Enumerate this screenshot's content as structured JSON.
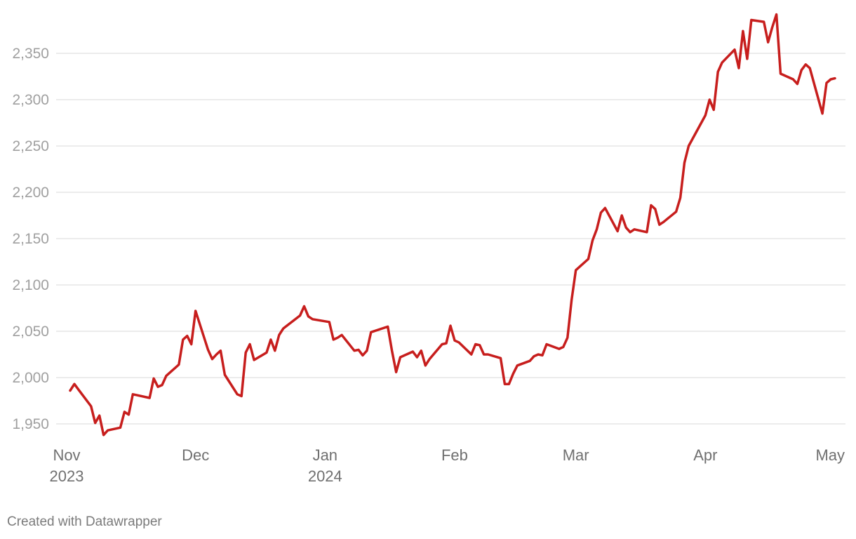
{
  "chart_data": {
    "type": "line",
    "title": "",
    "xlabel": "",
    "ylabel": "",
    "ylim": [
      1930,
      2395
    ],
    "y_ticks": [
      1950,
      2000,
      2050,
      2100,
      2150,
      2200,
      2250,
      2300,
      2350
    ],
    "y_tick_labels": [
      "1,950",
      "2,000",
      "2,050",
      "2,100",
      "2,150",
      "2,200",
      "2,250",
      "2,300",
      "2,350"
    ],
    "x_ticks": [
      {
        "date": "2023-11-01",
        "line1": "Nov",
        "line2": "2023"
      },
      {
        "date": "2023-12-01",
        "line1": "Dec",
        "line2": ""
      },
      {
        "date": "2024-01-01",
        "line1": "Jan",
        "line2": "2024"
      },
      {
        "date": "2024-02-01",
        "line1": "Feb",
        "line2": ""
      },
      {
        "date": "2024-03-01",
        "line1": "Mar",
        "line2": ""
      },
      {
        "date": "2024-04-01",
        "line1": "Apr",
        "line2": ""
      },
      {
        "date": "2024-05-01",
        "line1": "May",
        "line2": ""
      }
    ],
    "xlim": [
      "2023-11-01",
      "2024-05-01"
    ],
    "grid": true,
    "line_color": "#c71e1d",
    "grid_color": "#e1e1e1",
    "series": [
      {
        "x": [
          "2023-11-01",
          "2023-11-02",
          "2023-11-03",
          "2023-11-06",
          "2023-11-07",
          "2023-11-08",
          "2023-11-09",
          "2023-11-10",
          "2023-11-13",
          "2023-11-14",
          "2023-11-15",
          "2023-11-16",
          "2023-11-17",
          "2023-11-20",
          "2023-11-21",
          "2023-11-22",
          "2023-11-23",
          "2023-11-24",
          "2023-11-27",
          "2023-11-28",
          "2023-11-29",
          "2023-11-30",
          "2023-12-01",
          "2023-12-04",
          "2023-12-05",
          "2023-12-06",
          "2023-12-07",
          "2023-12-08",
          "2023-12-11",
          "2023-12-12",
          "2023-12-13",
          "2023-12-14",
          "2023-12-15",
          "2023-12-18",
          "2023-12-19",
          "2023-12-20",
          "2023-12-21",
          "2023-12-22",
          "2023-12-26",
          "2023-12-27",
          "2023-12-28",
          "2023-12-29",
          "2024-01-02",
          "2024-01-03",
          "2024-01-04",
          "2024-01-05",
          "2024-01-08",
          "2024-01-09",
          "2024-01-10",
          "2024-01-11",
          "2024-01-12",
          "2024-01-16",
          "2024-01-17",
          "2024-01-18",
          "2024-01-19",
          "2024-01-22",
          "2024-01-23",
          "2024-01-24",
          "2024-01-25",
          "2024-01-26",
          "2024-01-29",
          "2024-01-30",
          "2024-01-31",
          "2024-02-01",
          "2024-02-02",
          "2024-02-05",
          "2024-02-06",
          "2024-02-07",
          "2024-02-08",
          "2024-02-09",
          "2024-02-12",
          "2024-02-13",
          "2024-02-14",
          "2024-02-15",
          "2024-02-16",
          "2024-02-19",
          "2024-02-20",
          "2024-02-21",
          "2024-02-22",
          "2024-02-23",
          "2024-02-26",
          "2024-02-27",
          "2024-02-28",
          "2024-02-29",
          "2024-03-01",
          "2024-03-04",
          "2024-03-05",
          "2024-03-06",
          "2024-03-07",
          "2024-03-08",
          "2024-03-11",
          "2024-03-12",
          "2024-03-13",
          "2024-03-14",
          "2024-03-15",
          "2024-03-18",
          "2024-03-19",
          "2024-03-20",
          "2024-03-21",
          "2024-03-22",
          "2024-03-25",
          "2024-03-26",
          "2024-03-27",
          "2024-03-28",
          "2024-04-01",
          "2024-04-02",
          "2024-04-03",
          "2024-04-04",
          "2024-04-05",
          "2024-04-08",
          "2024-04-09",
          "2024-04-10",
          "2024-04-11",
          "2024-04-12",
          "2024-04-15",
          "2024-04-16",
          "2024-04-17",
          "2024-04-18",
          "2024-04-19",
          "2024-04-22",
          "2024-04-23",
          "2024-04-24",
          "2024-04-25",
          "2024-04-26",
          "2024-04-29",
          "2024-04-30",
          "2024-05-01",
          "2024-05-02"
        ],
        "y": [
          1986,
          1993,
          1987,
          1969,
          1951,
          1959,
          1938,
          1943,
          1946,
          1963,
          1960,
          1982,
          1981,
          1978,
          1999,
          1990,
          1992,
          2002,
          2014,
          2041,
          2045,
          2036,
          2072,
          2030,
          2020,
          2025,
          2029,
          2003,
          1982,
          1980,
          2027,
          2036,
          2019,
          2027,
          2041,
          2029,
          2046,
          2053,
          2067,
          2077,
          2066,
          2063,
          2060,
          2041,
          2043,
          2046,
          2029,
          2030,
          2024,
          2029,
          2049,
          2055,
          2029,
          2006,
          2022,
          2028,
          2022,
          2029,
          2013,
          2020,
          2036,
          2037,
          2056,
          2040,
          2038,
          2025,
          2036,
          2035,
          2025,
          2025,
          2021,
          1993,
          1993,
          2004,
          2013,
          2018,
          2023,
          2025,
          2024,
          2036,
          2031,
          2033,
          2043,
          2084,
          2116,
          2128,
          2148,
          2160,
          2178,
          2183,
          2158,
          2175,
          2162,
          2157,
          2160,
          2157,
          2186,
          2182,
          2165,
          2168,
          2179,
          2194,
          2232,
          2250,
          2283,
          2300,
          2289,
          2330,
          2340,
          2354,
          2334,
          2374,
          2344,
          2386,
          2384,
          2362,
          2378,
          2392,
          2328,
          2322,
          2317,
          2332,
          2338,
          2334,
          2285,
          2318,
          2322,
          2323
        ]
      }
    ]
  },
  "footer": {
    "credit": "Created with Datawrapper"
  }
}
